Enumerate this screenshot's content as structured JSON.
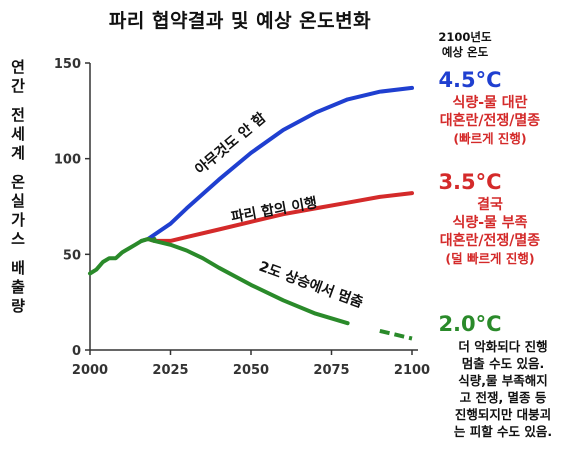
{
  "title": "파리 협약결과 및 예상 온도변화",
  "header_2100": [
    "2100년도",
    "예상 온도"
  ],
  "ylabel_chars": [
    "연",
    "간",
    "",
    "전",
    "세",
    "계",
    "",
    "온",
    "실",
    "가",
    "스",
    "",
    "배",
    "출",
    "량"
  ],
  "colors": {
    "blue": "#1f3fd0",
    "red": "#d42a2a",
    "green": "#2a8a2a"
  },
  "chart_data": {
    "type": "line",
    "xlim": [
      2000,
      2100
    ],
    "ylim": [
      0,
      150
    ],
    "x_ticks": [
      2000,
      2025,
      2050,
      2075,
      2100
    ],
    "y_ticks": [
      0,
      50,
      100,
      150
    ],
    "grid": false,
    "history": {
      "x": [
        2000,
        2002,
        2004,
        2006,
        2008,
        2010,
        2012,
        2014,
        2016,
        2018,
        2020
      ],
      "y": [
        40,
        42,
        46,
        48,
        48,
        51,
        53,
        55,
        57,
        58,
        58
      ]
    },
    "series": [
      {
        "name": "아무것도 안 함",
        "color": "#1f3fd0",
        "x": [
          2018,
          2025,
          2030,
          2040,
          2050,
          2060,
          2070,
          2080,
          2090,
          2100
        ],
        "y": [
          58,
          66,
          74,
          89,
          103,
          115,
          124,
          131,
          135,
          137
        ]
      },
      {
        "name": "파리 합의 이행",
        "color": "#d42a2a",
        "x": [
          2018,
          2020,
          2025,
          2030,
          2040,
          2050,
          2060,
          2070,
          2080,
          2090,
          2100
        ],
        "y": [
          58,
          57,
          57,
          59,
          63,
          67,
          71,
          74,
          77,
          80,
          82
        ]
      },
      {
        "name": "2도 상승에서 멈춤",
        "color": "#2a8a2a",
        "dash_from": 2088,
        "x": [
          2016,
          2018,
          2020,
          2025,
          2030,
          2035,
          2040,
          2050,
          2060,
          2070,
          2080,
          2090,
          2100
        ],
        "y": [
          57,
          58,
          57,
          55,
          52,
          48,
          43,
          34,
          26,
          19,
          14,
          10,
          6
        ]
      }
    ]
  },
  "outcomes": [
    {
      "temp": "4.5°C",
      "lines": [
        "식량-물 대란",
        "대혼란/전쟁/멸종"
      ],
      "note": "(빠르게 진행)"
    },
    {
      "temp": "3.5°C",
      "lines": [
        "결국",
        "식량-물 부족",
        "대혼란/전쟁/멸종"
      ],
      "note": "(덜 빠르게 진행)"
    },
    {
      "temp": "2.0°C",
      "lines": [
        "더 악화되다 진행",
        "멈출 수도 있음.",
        "식량,물 부족해지",
        "고 전쟁, 멸종 등",
        "진행되지만 대붕괴",
        "는 피할 수도 있음."
      ]
    }
  ]
}
